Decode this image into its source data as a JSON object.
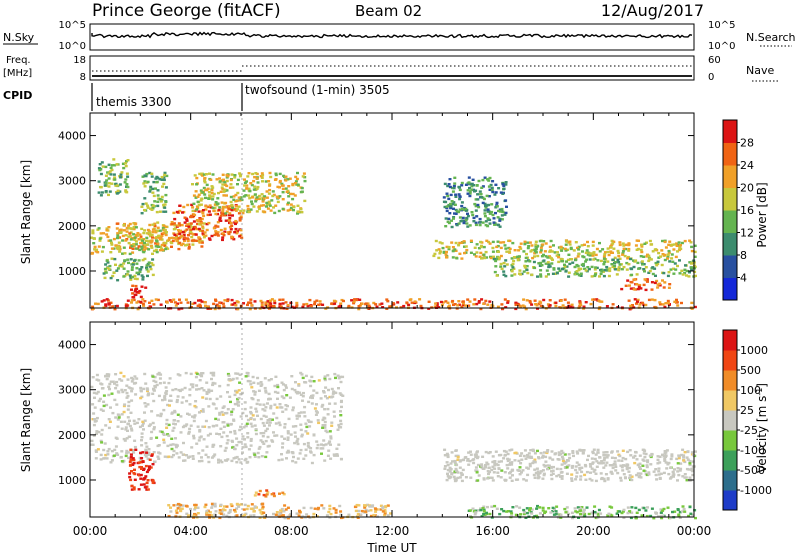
{
  "header": {
    "station": "Prince George (fitACF)",
    "beam": "Beam 02",
    "date": "12/Aug/2017"
  },
  "nsky_panel": {
    "left_label": "N.Sky",
    "right_label": "N.Search",
    "left_ticks": [
      "10^5",
      "10^0"
    ],
    "right_ticks": [
      "10^5",
      "10^0"
    ]
  },
  "freq_panel": {
    "left_label_top": "Freq.",
    "left_label_bottom": "[MHz]",
    "right_label": "Nave",
    "left_ticks": [
      "18",
      "8"
    ],
    "right_ticks": [
      "60",
      "0"
    ]
  },
  "cpid_panel": {
    "label": "CPID",
    "modes": [
      {
        "name": "themis 3300",
        "start_hour": 0
      },
      {
        "name": "twofsound (1-min) 3505",
        "start_hour": 6
      }
    ]
  },
  "power_colorbar": {
    "title": "Power [dB]",
    "ticks": [
      "4",
      "8",
      "12",
      "16",
      "20",
      "24",
      "28"
    ],
    "colors": [
      "#1428d8",
      "#2850a0",
      "#3c8c6e",
      "#64b450",
      "#c8c83c",
      "#f0a028",
      "#f06414",
      "#dc1414"
    ]
  },
  "velocity_colorbar": {
    "title": "Velocity [m s",
    "title_sup": "-1",
    "title_end": "]",
    "ticks": [
      "1000",
      "500",
      "100",
      "25",
      "-25",
      "-100",
      "-500",
      "-1000"
    ],
    "colors": [
      "#1e3cc8",
      "#2d6e8c",
      "#3ca05a",
      "#78c83c",
      "#c8c8c0",
      "#f0c864",
      "#f08c28",
      "#f04614",
      "#dc1414"
    ]
  },
  "chart_data": [
    {
      "type": "heatmap",
      "title": "",
      "xlabel": "",
      "ylabel": "Slant Range [km]",
      "xlim": [
        0,
        24
      ],
      "ylim": [
        180,
        4500
      ],
      "yticks": [
        "1000",
        "2000",
        "3000",
        "4000"
      ],
      "quantity": "power",
      "bands": [
        {
          "x": [
            0.3,
            1.5
          ],
          "y": [
            2700,
            3500
          ],
          "level": 3
        },
        {
          "x": [
            2.0,
            3.0
          ],
          "y": [
            2300,
            3200
          ],
          "level": 3
        },
        {
          "x": [
            1.0,
            4.5
          ],
          "y": [
            1500,
            2100
          ],
          "level": 5
        },
        {
          "x": [
            0.0,
            3.0
          ],
          "y": [
            1400,
            2000
          ],
          "level": 4
        },
        {
          "x": [
            3.2,
            6.0
          ],
          "y": [
            1700,
            2500
          ],
          "level": 6
        },
        {
          "x": [
            4.0,
            8.5
          ],
          "y": [
            2300,
            3200
          ],
          "level": 4
        },
        {
          "x": [
            0.5,
            2.5
          ],
          "y": [
            800,
            1300
          ],
          "level": 3
        },
        {
          "x": [
            1.5,
            2.2
          ],
          "y": [
            400,
            700
          ],
          "level": 7
        },
        {
          "x": [
            13.6,
            24.0
          ],
          "y": [
            1300,
            1700
          ],
          "level": 4
        },
        {
          "x": [
            16.0,
            24.0
          ],
          "y": [
            900,
            1300
          ],
          "level": 3
        },
        {
          "x": [
            21.0,
            23.0
          ],
          "y": [
            600,
            850
          ],
          "level": 6
        },
        {
          "x": [
            14.0,
            16.5
          ],
          "y": [
            2000,
            3100
          ],
          "level": 2
        },
        {
          "x": [
            0.0,
            24.0
          ],
          "y": [
            180,
            400
          ],
          "level": 6
        }
      ]
    },
    {
      "type": "heatmap",
      "title": "",
      "xlabel": "Time UT",
      "ylabel": "Slant Range [km]",
      "xlim": [
        0,
        24
      ],
      "ylim": [
        180,
        4500
      ],
      "xticks": [
        "00:00",
        "04:00",
        "08:00",
        "12:00",
        "16:00",
        "20:00",
        "00:00"
      ],
      "yticks": [
        "1000",
        "2000",
        "3000",
        "4000"
      ],
      "quantity": "velocity",
      "bands": [
        {
          "x": [
            0.0,
            10.0
          ],
          "y": [
            1400,
            3400
          ],
          "level": 4
        },
        {
          "x": [
            1.5,
            2.5
          ],
          "y": [
            800,
            1700
          ],
          "level": 8
        },
        {
          "x": [
            6.5,
            7.8
          ],
          "y": [
            650,
            800
          ],
          "level": 6
        },
        {
          "x": [
            14.0,
            24.0
          ],
          "y": [
            1000,
            1700
          ],
          "level": 4
        },
        {
          "x": [
            3.0,
            12.0
          ],
          "y": [
            180,
            500
          ],
          "level": 5
        },
        {
          "x": [
            15.0,
            24.0
          ],
          "y": [
            180,
            450
          ],
          "level": 3
        }
      ]
    }
  ]
}
